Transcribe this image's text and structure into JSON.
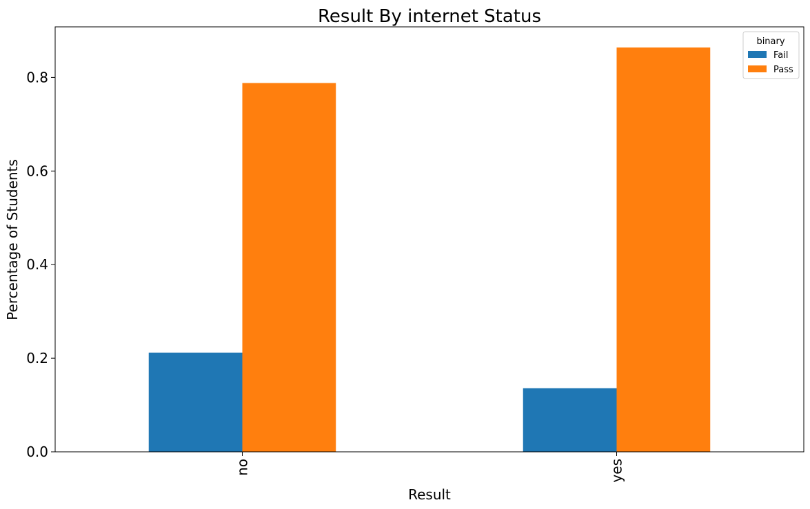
{
  "chart_data": {
    "type": "bar",
    "title": "Result By internet Status",
    "xlabel": "Result",
    "ylabel": "Percentage of Students",
    "categories": [
      "no",
      "yes"
    ],
    "series": [
      {
        "name": "Fail",
        "color": "#1f77b4",
        "values": [
          0.212,
          0.136
        ]
      },
      {
        "name": "Pass",
        "color": "#ff7f0e",
        "values": [
          0.788,
          0.864
        ]
      }
    ],
    "ylim": [
      0,
      0.908
    ],
    "yticks": [
      0.0,
      0.2,
      0.4,
      0.6,
      0.8
    ],
    "ytick_labels": [
      "0.0",
      "0.2",
      "0.4",
      "0.6",
      "0.8"
    ],
    "xtick_rotation": "vertical",
    "grid": false,
    "legend": {
      "title": "binary",
      "placement": "top-right"
    }
  }
}
